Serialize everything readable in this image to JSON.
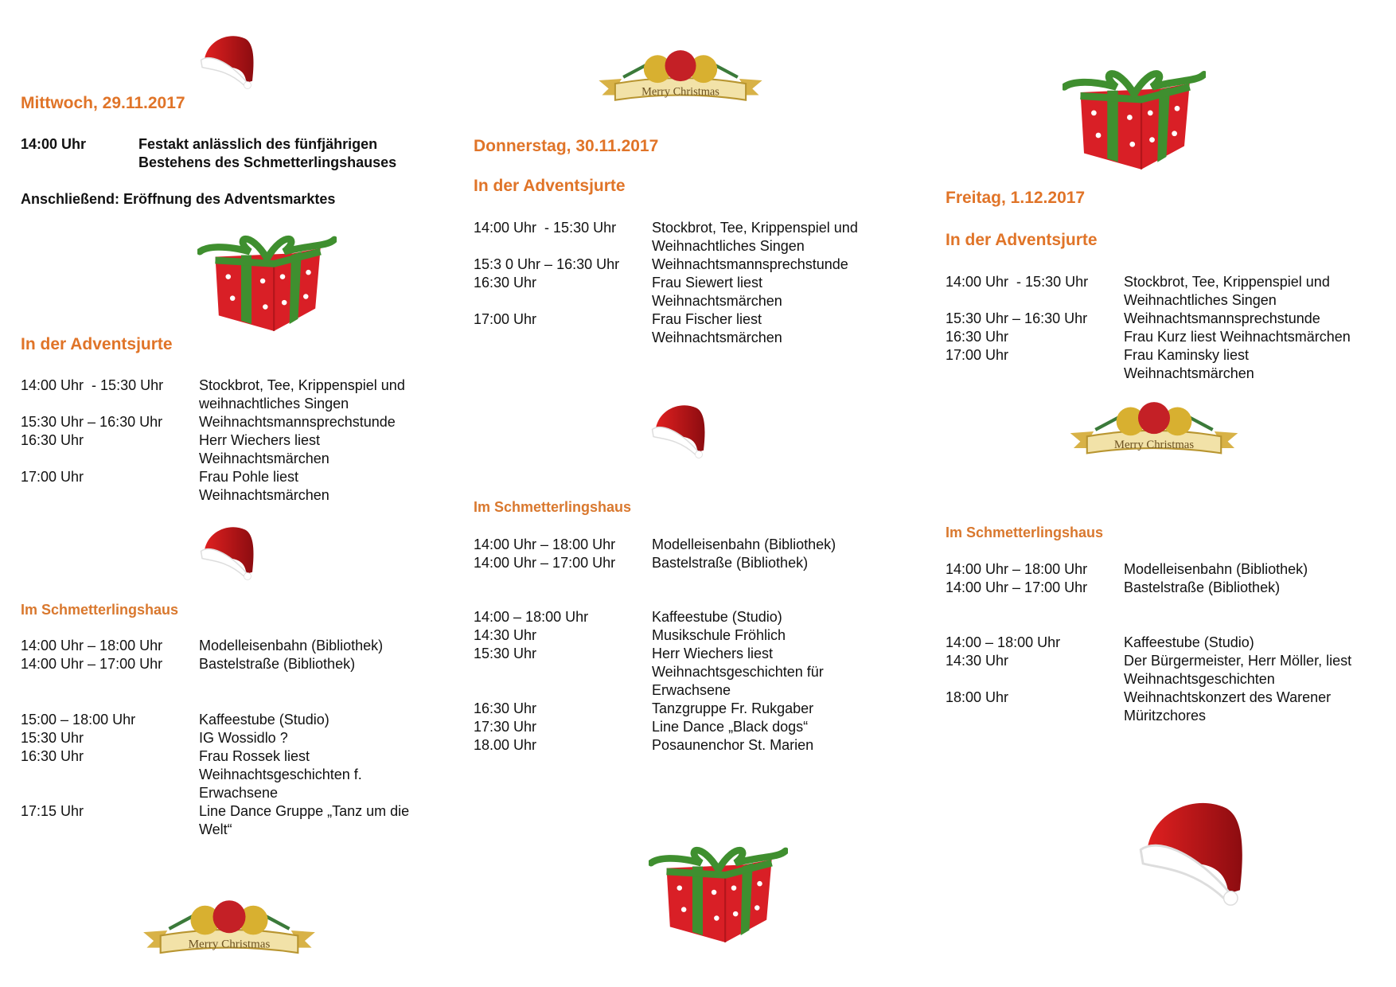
{
  "colors": {
    "heading": "#e07428",
    "text": "#111111",
    "hat_red": "#c8141c",
    "gift_red": "#d91f26",
    "ribbon_green": "#3f8f2f",
    "gold": "#d8b247"
  },
  "icons": [
    "santa-hat-icon",
    "gift-icon",
    "merry-christmas-banner-icon"
  ],
  "banner_text": "Merry Christmas",
  "wednesday": {
    "date": "Mittwoch, 29.11.2017",
    "opening": {
      "time": "14:00 Uhr",
      "text": "Festakt anlässlich des fünfjährigen\nBestehens des Schmetterlingshauses"
    },
    "followup": "Anschließend: Eröffnung des Adventsmarktes",
    "jurte_title": "In der Adventsjurte",
    "jurte": [
      {
        "time": "14:00 Uhr  - 15:30 Uhr",
        "text": "Stockbrot, Tee,  Krippenspiel und\nweihnachtliches  Singen"
      },
      {
        "time": "15:30 Uhr – 16:30 Uhr",
        "text": "Weihnachtsmannsprechstunde"
      },
      {
        "time": "16:30 Uhr",
        "text": "Herr Wiechers liest\nWeihnachtsmärchen"
      },
      {
        "time": "17:00 Uhr",
        "text": "Frau Pohle liest\nWeihnachtsmärchen"
      }
    ],
    "haus_title": "Im Schmetterlingshaus",
    "haus_a": [
      {
        "time": "14:00 Uhr – 18:00 Uhr",
        "text": "Modelleisenbahn (Bibliothek)"
      },
      {
        "time": "14:00 Uhr – 17:00 Uhr",
        "text": "Bastelstraße (Bibliothek)"
      }
    ],
    "haus_b": [
      {
        "time": "15:00 – 18:00 Uhr",
        "text": "Kaffeestube (Studio)"
      },
      {
        "time": "15:30 Uhr",
        "text": "IG Wossidlo ?"
      },
      {
        "time": "16:30 Uhr",
        "text": "Frau Rossek liest\nWeihnachtsgeschichten f.\nErwachsene"
      },
      {
        "time": "17:15 Uhr",
        "text": "Line Dance Gruppe „Tanz um die\nWelt“"
      }
    ]
  },
  "thursday": {
    "date": "Donnerstag, 30.11.2017",
    "jurte_title": "In der Adventsjurte",
    "jurte": [
      {
        "time": "14:00 Uhr  - 15:30 Uhr",
        "text": "Stockbrot, Tee, Krippenspiel und\nWeihnachtliches Singen"
      },
      {
        "time": "15:3 0 Uhr – 16:30 Uhr",
        "text": "Weihnachtsmannsprechstunde"
      },
      {
        "time": "16:30 Uhr",
        "text": "Frau Siewert  liest\nWeihnachtsmärchen"
      },
      {
        "time": "17:00 Uhr",
        "text": "Frau Fischer  liest\nWeihnachtsmärchen"
      }
    ],
    "haus_title": "Im Schmetterlingshaus",
    "haus_a": [
      {
        "time": "14:00 Uhr – 18:00 Uhr",
        "text": "Modelleisenbahn (Bibliothek)"
      },
      {
        "time": "14:00 Uhr – 17:00 Uhr",
        "text": "Bastelstraße (Bibliothek)"
      }
    ],
    "haus_b": [
      {
        "time": "14:00 – 18:00 Uhr",
        "text": "Kaffeestube (Studio)"
      },
      {
        "time": "14:30 Uhr",
        "text": "Musikschule Fröhlich"
      },
      {
        "time": "15:30 Uhr",
        "text": "Herr Wiechers liest\nWeihnachtsgeschichten für\nErwachsene"
      },
      {
        "time": "16:30 Uhr",
        "text": "Tanzgruppe Fr. Rukgaber"
      },
      {
        "time": "17:30 Uhr",
        "text": "Line Dance „Black dogs“"
      },
      {
        "time": "18.00 Uhr",
        "text": "Posaunenchor St. Marien"
      }
    ]
  },
  "friday": {
    "date": "Freitag, 1.12.2017",
    "jurte_title": "In der Adventsjurte",
    "jurte": [
      {
        "time": "14:00 Uhr  - 15:30 Uhr",
        "text": "Stockbrot, Tee, Krippenspiel und\nWeihnachtliches Singen"
      },
      {
        "time": "15:30 Uhr – 16:30 Uhr",
        "text": "Weihnachtsmannsprechstunde"
      },
      {
        "time": "16:30 Uhr",
        "text": "Frau Kurz liest Weihnachtsmärchen"
      },
      {
        "time": "17:00 Uhr",
        "text": "Frau Kaminsky  liest\nWeihnachtsmärchen"
      }
    ],
    "haus_title": "Im Schmetterlingshaus",
    "haus_a": [
      {
        "time": "14:00 Uhr – 18:00 Uhr",
        "text": "Modelleisenbahn (Bibliothek)"
      },
      {
        "time": "14:00 Uhr – 17:00 Uhr",
        "text": "Bastelstraße (Bibliothek)"
      }
    ],
    "haus_b": [
      {
        "time": "14:00 – 18:00 Uhr",
        "text": "Kaffeestube (Studio)"
      },
      {
        "time": "14:30 Uhr",
        "text": "Der Bürgermeister, Herr Möller, liest\nWeihnachtsgeschichten"
      },
      {
        "time": "18:00 Uhr",
        "text": "Weihnachtskonzert des Warener\nMüritzchores"
      }
    ]
  }
}
